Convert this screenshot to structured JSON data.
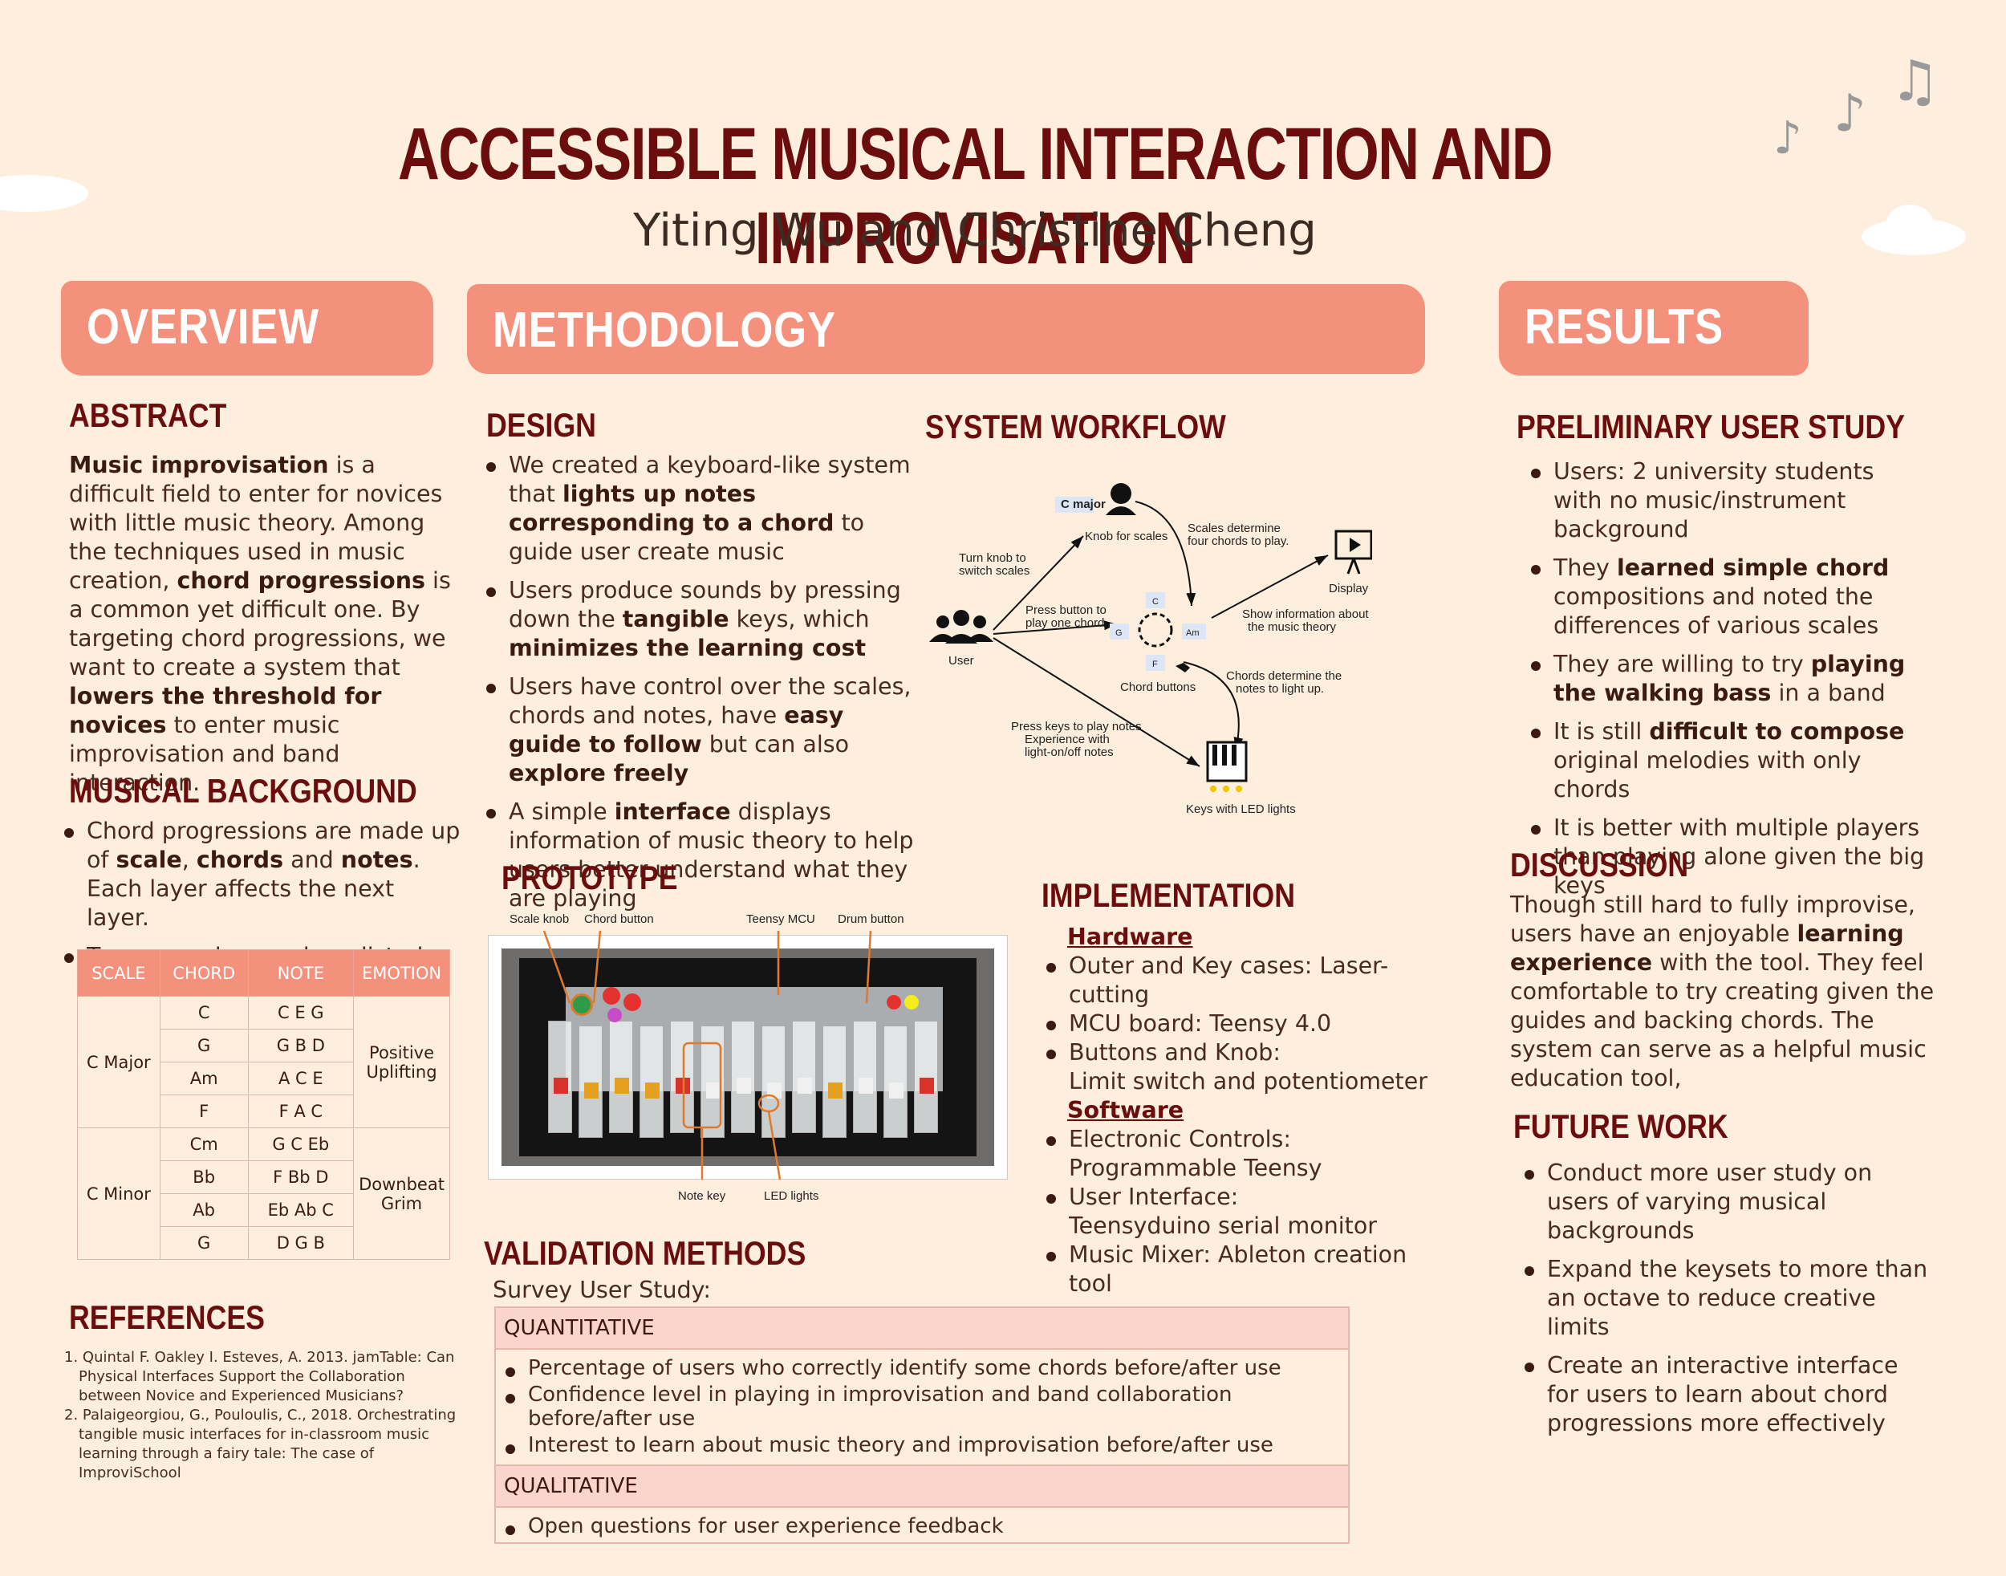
{
  "header": {
    "title": "ACCESSIBLE MUSICAL INTERACTION AND IMPROVISATION",
    "authors": "Yiting Wu and Christine Cheng"
  },
  "sections": {
    "overview": "OVERVIEW",
    "methodology": "METHODOLOGY",
    "results": "RESULTS"
  },
  "abstract": {
    "heading": "ABSTRACT",
    "segments": [
      {
        "t": "Music improvisation",
        "b": true
      },
      {
        "t": " is a difficult field to enter for novices with little music theory. Among the techniques used in music creation, ",
        "b": false
      },
      {
        "t": "chord progressions",
        "b": true
      },
      {
        "t": " is a common yet difficult one.  By targeting chord progressions, we want to create a system that ",
        "b": false
      },
      {
        "t": "lowers the threshold for novices",
        "b": true
      },
      {
        "t": " to enter music improvisation and band interaction.",
        "b": false
      }
    ]
  },
  "musical_background": {
    "heading": "MUSICAL BACKGROUND",
    "bullets": [
      [
        {
          "t": "Chord progressions are made up of ",
          "b": false
        },
        {
          "t": "scale",
          "b": true
        },
        {
          "t": ", ",
          "b": false
        },
        {
          "t": "chords",
          "b": true
        },
        {
          "t": " and ",
          "b": false
        },
        {
          "t": "notes",
          "b": true
        },
        {
          "t": ".  Each layer affects the next layer.",
          "b": false
        }
      ],
      [
        {
          "t": "Two examples used are listed below",
          "b": false
        }
      ]
    ],
    "table": {
      "headers": [
        "SCALE",
        "CHORD",
        "NOTE",
        "EMOTION"
      ],
      "groups": [
        {
          "scale": "C  Major",
          "emotion": "Positive\nUplifting",
          "rows": [
            [
              "C",
              "C  E G"
            ],
            [
              "G",
              "G  B  D"
            ],
            [
              "Am",
              "A C  E"
            ],
            [
              "F",
              "F A C"
            ]
          ]
        },
        {
          "scale": "C  Minor",
          "emotion": "Downbeat\nGrim",
          "rows": [
            [
              "Cm",
              "G C  Eb"
            ],
            [
              "Bb",
              "F  Bb  D"
            ],
            [
              "Ab",
              "Eb Ab C"
            ],
            [
              "G",
              "D G  B"
            ]
          ]
        }
      ]
    }
  },
  "references": {
    "heading": "REFERENCES",
    "items": [
      "1. Quintal  F. Oakley  I.  Esteves, A. 2013. jamTable: Can Physical  Interfaces Support the Collaboration between Novice and  Experienced  Musicians?",
      "2. Palaigeorgiou, G.,  Pouloulis, C., 2018. Orchestrating tangible music interfaces for in-classroom music learning through a fairy tale: The case of  ImproviSchool"
    ]
  },
  "design": {
    "heading": "DESIGN",
    "bullets": [
      [
        {
          "t": "We created a keyboard-like system that ",
          "b": false
        },
        {
          "t": "lights up notes corresponding to a chord",
          "b": true
        },
        {
          "t": " to guide user create music",
          "b": false
        }
      ],
      [
        {
          "t": "Users produce sounds by pressing down the ",
          "b": false
        },
        {
          "t": "tangible",
          "b": true
        },
        {
          "t": " keys, which ",
          "b": false
        },
        {
          "t": "minimizes the learning cost",
          "b": true
        }
      ],
      [
        {
          "t": "Users have control over the scales, chords and notes, have ",
          "b": false
        },
        {
          "t": "easy guide to follow",
          "b": true
        },
        {
          "t": " but can also ",
          "b": false
        },
        {
          "t": "explore freely",
          "b": true
        }
      ],
      [
        {
          "t": "A simple ",
          "b": false
        },
        {
          "t": "interface",
          "b": true
        },
        {
          "t": " displays information of music theory to help users better understand what they are playing",
          "b": false
        }
      ]
    ]
  },
  "workflow": {
    "heading": "SYSTEM WORKFLOW",
    "labels": {
      "c_major": "C major",
      "knob": "Knob for scales",
      "scales_det": "Scales determine\nfour chords to play.",
      "display": "Display interface",
      "turn_knob": "Turn knob to\nswitch scales",
      "press_button": "Press button to\nplay one chord",
      "show_info": "Show information about\nthe music theory",
      "user": "User",
      "chord_buttons": "Chord buttons",
      "chords_det": "Chords determine the\nnotes to light up.",
      "press_keys": "Press keys to play notes\nExperience with\nlight-on/off notes",
      "keys": "Keys with LED lights",
      "btn_c": "C",
      "btn_g": "G",
      "btn_am": "Am",
      "btn_f": "F"
    }
  },
  "prototype": {
    "heading": "PROTOTYPE",
    "labels": {
      "scale_knob": "Scale knob",
      "chord_button": "Chord button",
      "teensy": "Teensy MCU",
      "drum": "Drum button",
      "note_key": "Note key",
      "led": "LED lights"
    }
  },
  "implementation": {
    "heading": "IMPLEMENTATION",
    "hardware": "Hardware",
    "hardware_items": [
      "Outer and  Key cases:  Laser-cutting",
      "MCU board: Teensy 4.0",
      "Buttons and  Knob:\nLimit switch and potentiometer"
    ],
    "software": "Software",
    "software_items": [
      "Electronic Controls:\nProgrammable Teensy",
      "User  Interface:\nTeensyduino serial monitor",
      "Music  Mixer: Ableton creation tool"
    ]
  },
  "validation": {
    "heading": "VALIDATION METHODS",
    "intro": "Survey User Study:",
    "quant_label": "QUANTITATIVE",
    "quant_items": [
      "Percentage of users who correctly identify some chords before/after use",
      "Confidence level in playing in improvisation and band collaboration before/after use",
      "Interest to learn about music theory and improvisation before/after use"
    ],
    "qual_label": "QUALITATIVE",
    "qual_items": [
      "Open questions for user experience feedback"
    ]
  },
  "user_study": {
    "heading": "PRELIMINARY USER STUDY",
    "bullets": [
      [
        {
          "t": "Users: 2 university students with no music/instrument background",
          "b": false
        }
      ],
      [
        {
          "t": "They ",
          "b": false
        },
        {
          "t": "learned simple chord",
          "b": true
        },
        {
          "t": " compositions and noted the differences of various scales",
          "b": false
        }
      ],
      [
        {
          "t": "They are willing to try ",
          "b": false
        },
        {
          "t": "playing the walking bass",
          "b": true
        },
        {
          "t": " in a band",
          "b": false
        }
      ],
      [
        {
          "t": "It is still ",
          "b": false
        },
        {
          "t": "difficult to compose",
          "b": true
        },
        {
          "t": " original melodies with only chords",
          "b": false
        }
      ],
      [
        {
          "t": "It is better with multiple players than playing alone given the big  keys",
          "b": false
        }
      ]
    ]
  },
  "discussion": {
    "heading": "DISCUSSION",
    "segments": [
      {
        "t": "Though still hard to fully improvise, users have an enjoyable ",
        "b": false
      },
      {
        "t": "learning experience",
        "b": true
      },
      {
        "t": " with the tool. They feel comfortable to try creating given the guides and backing chords. The system can serve as a helpful music education tool,",
        "b": false
      }
    ]
  },
  "future_work": {
    "heading": "FUTURE WORK",
    "items": [
      "Conduct more user study on users of varying musical backgrounds",
      "Expand the keysets to more than an octave to reduce creative limits",
      "Create an interactive interface for users to learn about chord progressions more effectively"
    ]
  },
  "colors": {
    "title": "#6b0d0d",
    "banner": "#f4917c",
    "background": "#fdeedd",
    "table_head": "#f4917c",
    "box_head": "#fbd5cc"
  },
  "icons": [
    "music-note-icon",
    "user-icon",
    "headphones-icon",
    "display-icon",
    "piano-icon",
    "cloud-icon"
  ]
}
